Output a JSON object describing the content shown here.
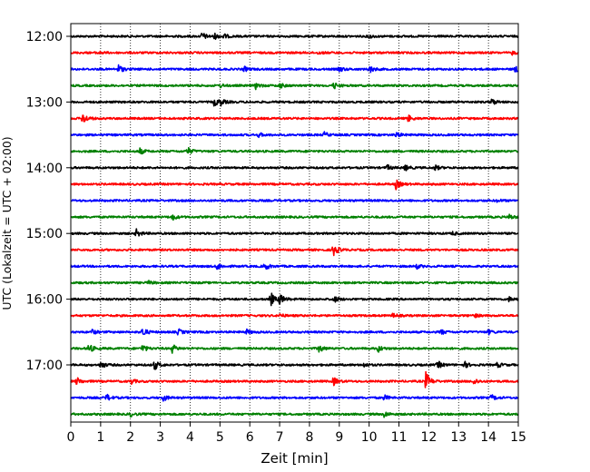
{
  "chart_data": {
    "type": "line",
    "title": "",
    "xlabel": "Zeit  [min]",
    "ylabel": "UTC (Lokalzeit = UTC + 02:00)",
    "xlim": [
      0,
      15
    ],
    "x_ticks": [
      0,
      1,
      2,
      3,
      4,
      5,
      6,
      7,
      8,
      9,
      10,
      11,
      12,
      13,
      14,
      15
    ],
    "x_tick_labels": [
      "0",
      "1",
      "2",
      "3",
      "4",
      "5",
      "6",
      "7",
      "8",
      "9",
      "10",
      "11",
      "12",
      "13",
      "14",
      "15"
    ],
    "y_ticks": [
      "12:00",
      "13:00",
      "14:00",
      "15:00",
      "16:00",
      "17:00"
    ],
    "vertical_grid": true,
    "grid_style": "dotted",
    "trace_interval": "15 min",
    "trace_colors": [
      "#000000",
      "#ff0000",
      "#0000ff",
      "#008000"
    ],
    "traces": [
      {
        "start": "12:00",
        "color": "#000000",
        "events": [
          {
            "t": 4.4,
            "a": 0.45
          },
          {
            "t": 4.8,
            "a": 0.35
          },
          {
            "t": 5.1,
            "a": 0.3
          },
          {
            "t": 10.0,
            "a": 0.2
          }
        ]
      },
      {
        "start": "12:15",
        "color": "#ff0000",
        "events": [
          {
            "t": 0.9,
            "a": 0.18
          },
          {
            "t": 8.3,
            "a": 0.15
          },
          {
            "t": 14.8,
            "a": 0.2
          }
        ]
      },
      {
        "start": "12:30",
        "color": "#0000ff",
        "events": [
          {
            "t": 1.6,
            "a": 0.5
          },
          {
            "t": 5.8,
            "a": 0.3
          },
          {
            "t": 9.0,
            "a": 0.3
          },
          {
            "t": 10.0,
            "a": 0.45
          },
          {
            "t": 14.9,
            "a": 0.35
          }
        ]
      },
      {
        "start": "12:45",
        "color": "#008000",
        "events": [
          {
            "t": 5.0,
            "a": 0.2
          },
          {
            "t": 6.2,
            "a": 0.35
          },
          {
            "t": 7.0,
            "a": 0.3
          },
          {
            "t": 8.8,
            "a": 0.45
          }
        ]
      },
      {
        "start": "13:00",
        "color": "#000000",
        "events": [
          {
            "t": 4.8,
            "a": 0.45
          },
          {
            "t": 5.0,
            "a": 0.4
          },
          {
            "t": 14.1,
            "a": 0.4
          }
        ]
      },
      {
        "start": "13:15",
        "color": "#ff0000",
        "events": [
          {
            "t": 0.4,
            "a": 0.7
          },
          {
            "t": 11.3,
            "a": 0.4
          }
        ]
      },
      {
        "start": "13:30",
        "color": "#0000ff",
        "events": [
          {
            "t": 6.3,
            "a": 0.25
          },
          {
            "t": 8.5,
            "a": 0.3
          },
          {
            "t": 10.9,
            "a": 0.3
          }
        ]
      },
      {
        "start": "13:45",
        "color": "#008000",
        "events": [
          {
            "t": 2.3,
            "a": 0.4
          },
          {
            "t": 3.9,
            "a": 0.5
          }
        ]
      },
      {
        "start": "14:00",
        "color": "#000000",
        "events": [
          {
            "t": 10.6,
            "a": 0.3
          },
          {
            "t": 11.2,
            "a": 0.35
          },
          {
            "t": 12.2,
            "a": 0.3
          }
        ]
      },
      {
        "start": "14:15",
        "color": "#ff0000",
        "events": [
          {
            "t": 10.9,
            "a": 0.55
          }
        ]
      },
      {
        "start": "14:30",
        "color": "#0000ff",
        "events": [
          {
            "t": 14.3,
            "a": 0.15
          }
        ]
      },
      {
        "start": "14:45",
        "color": "#008000",
        "events": [
          {
            "t": 3.4,
            "a": 0.35
          },
          {
            "t": 14.7,
            "a": 0.3
          }
        ]
      },
      {
        "start": "15:00",
        "color": "#000000",
        "events": [
          {
            "t": 2.2,
            "a": 0.45
          },
          {
            "t": 12.8,
            "a": 0.2
          }
        ]
      },
      {
        "start": "15:15",
        "color": "#ff0000",
        "events": [
          {
            "t": 8.8,
            "a": 0.8
          }
        ]
      },
      {
        "start": "15:30",
        "color": "#0000ff",
        "events": [
          {
            "t": 4.9,
            "a": 0.4
          },
          {
            "t": 6.5,
            "a": 0.45
          },
          {
            "t": 11.6,
            "a": 0.25
          }
        ]
      },
      {
        "start": "15:45",
        "color": "#008000",
        "events": [
          {
            "t": 2.6,
            "a": 0.2
          }
        ]
      },
      {
        "start": "16:00",
        "color": "#000000",
        "events": [
          {
            "t": 6.7,
            "a": 0.8
          },
          {
            "t": 7.0,
            "a": 0.6
          },
          {
            "t": 8.8,
            "a": 0.45
          },
          {
            "t": 14.7,
            "a": 0.3
          }
        ]
      },
      {
        "start": "16:15",
        "color": "#ff0000",
        "events": [
          {
            "t": 7.0,
            "a": 0.2
          },
          {
            "t": 10.8,
            "a": 0.25
          },
          {
            "t": 13.5,
            "a": 0.25
          }
        ]
      },
      {
        "start": "16:30",
        "color": "#0000ff",
        "events": [
          {
            "t": 0.7,
            "a": 0.3
          },
          {
            "t": 2.4,
            "a": 0.55
          },
          {
            "t": 3.6,
            "a": 0.35
          },
          {
            "t": 5.9,
            "a": 0.25
          },
          {
            "t": 12.4,
            "a": 0.3
          },
          {
            "t": 14.0,
            "a": 0.25
          }
        ]
      },
      {
        "start": "16:45",
        "color": "#008000",
        "events": [
          {
            "t": 0.6,
            "a": 0.55
          },
          {
            "t": 2.4,
            "a": 0.45
          },
          {
            "t": 3.4,
            "a": 0.5
          },
          {
            "t": 8.3,
            "a": 0.5
          },
          {
            "t": 10.3,
            "a": 0.4
          }
        ]
      },
      {
        "start": "17:00",
        "color": "#000000",
        "events": [
          {
            "t": 1.0,
            "a": 0.45
          },
          {
            "t": 2.8,
            "a": 0.6
          },
          {
            "t": 9.8,
            "a": 0.25
          },
          {
            "t": 12.3,
            "a": 0.45
          },
          {
            "t": 13.2,
            "a": 0.35
          },
          {
            "t": 14.3,
            "a": 0.3
          }
        ]
      },
      {
        "start": "17:15",
        "color": "#ff0000",
        "events": [
          {
            "t": 0.2,
            "a": 0.45
          },
          {
            "t": 2.0,
            "a": 0.35
          },
          {
            "t": 8.8,
            "a": 0.5
          },
          {
            "t": 11.9,
            "a": 1.1
          },
          {
            "t": 13.5,
            "a": 0.4
          }
        ]
      },
      {
        "start": "17:30",
        "color": "#0000ff",
        "events": [
          {
            "t": 1.2,
            "a": 0.4
          },
          {
            "t": 3.1,
            "a": 0.35
          },
          {
            "t": 10.5,
            "a": 0.3
          },
          {
            "t": 14.1,
            "a": 0.35
          }
        ]
      },
      {
        "start": "17:45",
        "color": "#008000",
        "events": [
          {
            "t": 2.0,
            "a": 0.25
          },
          {
            "t": 10.5,
            "a": 0.35
          }
        ]
      }
    ]
  }
}
